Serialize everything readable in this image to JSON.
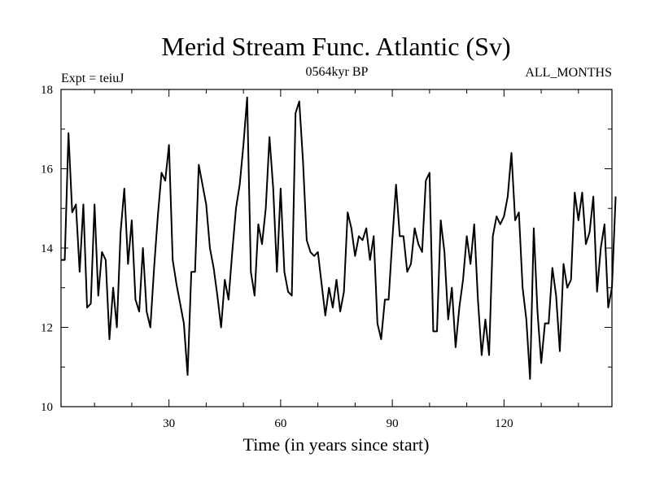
{
  "chart_data": {
    "type": "line",
    "title": "Merid Stream Func. Atlantic (Sv)",
    "subtitle_left": "Expt = teiuJ",
    "subtitle_center": "0564kyr BP",
    "subtitle_right": "ALL_MONTHS",
    "xlabel": "Time (in years since start)",
    "ylabel": "",
    "xlim": [
      1,
      149
    ],
    "ylim": [
      10,
      18
    ],
    "xticks": [
      30,
      60,
      90,
      120
    ],
    "yticks": [
      10,
      12,
      14,
      16,
      18
    ],
    "x_start": 1,
    "x_step": 1,
    "series": [
      {
        "name": "Merid Stream Func. Atlantic",
        "color": "#000000",
        "values": [
          13.7,
          13.7,
          16.9,
          14.9,
          15.1,
          13.4,
          15.1,
          12.5,
          12.6,
          15.1,
          12.8,
          13.9,
          13.7,
          11.7,
          13.0,
          12.0,
          14.4,
          15.5,
          13.6,
          14.7,
          12.7,
          12.4,
          14.0,
          12.4,
          12.0,
          13.5,
          14.8,
          15.9,
          15.7,
          16.6,
          13.7,
          13.1,
          12.6,
          12.1,
          10.8,
          13.4,
          13.4,
          16.1,
          15.6,
          15.1,
          14.0,
          13.5,
          12.8,
          12.0,
          13.2,
          12.7,
          13.9,
          15.0,
          15.6,
          16.6,
          17.8,
          13.4,
          12.8,
          14.6,
          14.1,
          15.0,
          16.8,
          15.5,
          13.4,
          15.5,
          13.4,
          12.9,
          12.8,
          17.4,
          17.7,
          16.2,
          14.2,
          13.9,
          13.8,
          13.9,
          13.1,
          12.3,
          13.0,
          12.5,
          13.2,
          12.4,
          12.9,
          14.9,
          14.5,
          13.8,
          14.3,
          14.2,
          14.5,
          13.7,
          14.3,
          12.1,
          11.7,
          12.7,
          12.7,
          14.2,
          15.6,
          14.3,
          14.3,
          13.4,
          13.6,
          14.5,
          14.1,
          13.9,
          15.7,
          15.9,
          11.9,
          11.9,
          14.7,
          13.9,
          12.2,
          13.0,
          11.5,
          12.5,
          13.2,
          14.3,
          13.6,
          14.6,
          12.7,
          11.3,
          12.2,
          11.3,
          14.3,
          14.8,
          14.6,
          14.8,
          15.3,
          16.4,
          14.7,
          14.9,
          13.0,
          12.2,
          10.7,
          14.5,
          12.4,
          11.1,
          12.1,
          12.1,
          13.5,
          12.8,
          11.4,
          13.6,
          13.0,
          13.2,
          15.4,
          14.7,
          15.4,
          14.1,
          14.4,
          15.3,
          12.9,
          14.0,
          14.6,
          12.5,
          13.0,
          15.3
        ]
      }
    ]
  }
}
